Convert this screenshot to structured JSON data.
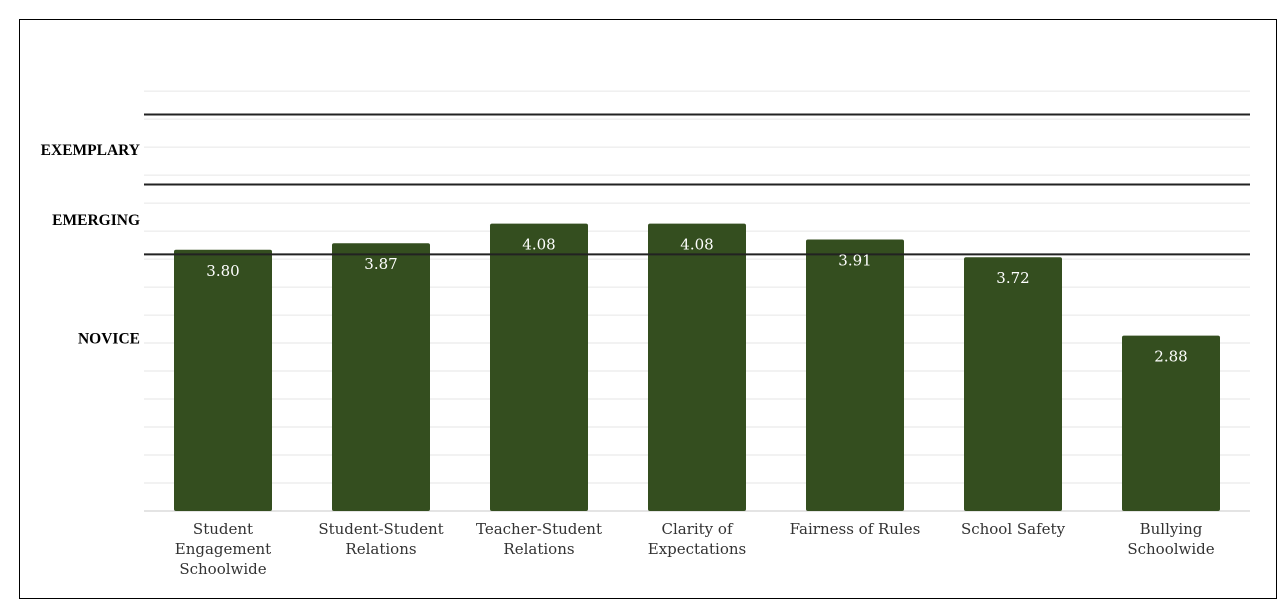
{
  "chart_data": {
    "type": "bar",
    "title": "",
    "xlabel": "",
    "ylabel": "",
    "ylim": [
      1.0,
      4.0
    ],
    "grid": true,
    "categories": [
      [
        "Student",
        "Engagement",
        "Schoolwide"
      ],
      [
        "Student-Student",
        "Relations"
      ],
      [
        "Teacher-Student",
        "Relations"
      ],
      [
        "Clarity of",
        "Expectations"
      ],
      [
        "Fairness of Rules"
      ],
      [
        "School Safety"
      ],
      [
        "Bullying",
        "Schoolwide"
      ]
    ],
    "values": [
      3.8,
      3.87,
      4.08,
      4.08,
      3.91,
      3.72,
      2.88
    ],
    "value_labels": [
      "3.80",
      "3.87",
      "4.08",
      "4.08",
      "3.91",
      "3.72",
      "2.88"
    ],
    "bar_color": "#344e1f",
    "threshold_lines": [
      {
        "name": "novice-emerging",
        "value": 3.75
      },
      {
        "name": "emerging-exemplary",
        "value": 4.5
      },
      {
        "name": "top",
        "value": 5.25
      }
    ],
    "level_labels": [
      {
        "name": "exemplary",
        "text": "EXEMPLARY",
        "value": 4.87
      },
      {
        "name": "emerging",
        "text": "EMERGING",
        "value": 4.12
      },
      {
        "name": "novice",
        "text": "NOVICE",
        "value": 2.85
      }
    ]
  }
}
